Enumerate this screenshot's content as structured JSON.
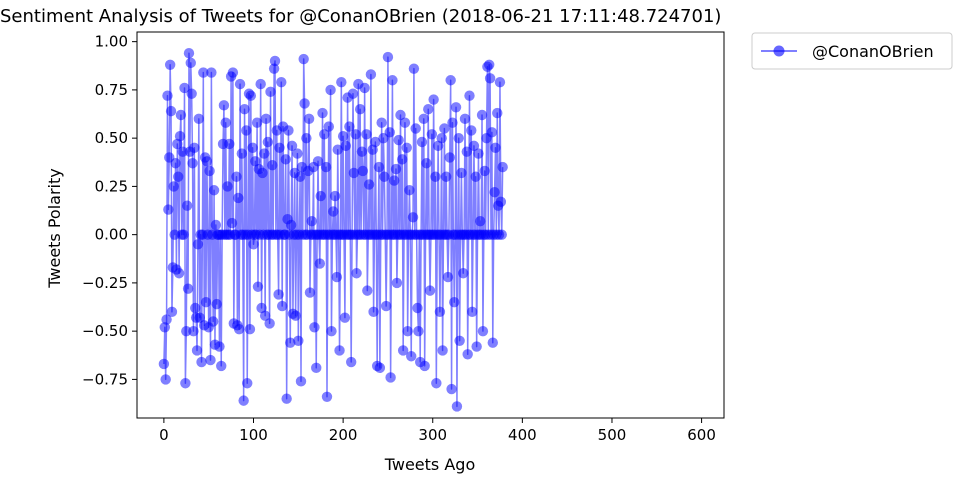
{
  "chart_data": {
    "type": "line",
    "title": "Sentiment Analysis of Tweets for  @ConanOBrien (2018-06-21 17:11:48.724701)",
    "xlabel": "Tweets Ago",
    "ylabel": "Tweets Polarity",
    "xlim": [
      -30,
      625
    ],
    "ylim": [
      -0.95,
      1.05
    ],
    "x_ticks": [
      0,
      100,
      200,
      300,
      400,
      500,
      600
    ],
    "x_tick_labels": [
      "0",
      "100",
      "200",
      "300",
      "400",
      "500",
      "600"
    ],
    "y_ticks": [
      1.0,
      0.75,
      0.5,
      0.25,
      0.0,
      -0.25,
      -0.5,
      -0.75
    ],
    "y_tick_labels": [
      "1.00",
      "0.75",
      "0.50",
      "0.25",
      "0.00",
      "−0.25",
      "−0.50",
      "−0.75"
    ],
    "grid": false,
    "legend_position": "outside-top-right",
    "series": [
      {
        "name": "@ConanOBrien",
        "color": "#0000ff",
        "marker": "circle",
        "alpha": 0.5,
        "y": [
          -0.67,
          -0.48,
          -0.75,
          -0.44,
          0.72,
          0.13,
          0.4,
          0.88,
          0.64,
          -0.4,
          -0.17,
          0.25,
          0.0,
          0.37,
          -0.18,
          0.47,
          0.3,
          -0.2,
          0.51,
          0.62,
          0.0,
          0.43,
          0.0,
          0.76,
          -0.77,
          -0.5,
          0.15,
          -0.28,
          0.94,
          0.43,
          0.89,
          0.73,
          0.37,
          -0.5,
          0.45,
          -0.38,
          -0.43,
          -0.6,
          -0.05,
          0.6,
          -0.43,
          0.0,
          -0.66,
          0.0,
          0.84,
          -0.47,
          0.4,
          -0.35,
          0.38,
          0.0,
          -0.48,
          0.33,
          -0.65,
          0.84,
          0.0,
          -0.45,
          0.23,
          -0.57,
          0.05,
          -0.36,
          0.0,
          0.0,
          -0.58,
          0.0,
          -0.68,
          0.0,
          0.47,
          0.67,
          0.0,
          0.58,
          0.0,
          0.25,
          0.0,
          0.47,
          0.0,
          0.82,
          0.06,
          0.84,
          -0.46,
          0.0,
          0.0,
          0.3,
          -0.47,
          0.19,
          -0.49,
          0.78,
          0.0,
          0.42,
          0.0,
          -0.86,
          0.65,
          0.0,
          0.54,
          -0.77,
          0.0,
          0.73,
          -0.49,
          0.72,
          0.0,
          0.45,
          -0.05,
          0.0,
          0.38,
          0.0,
          0.58,
          -0.27,
          0.34,
          0.0,
          0.78,
          -0.38,
          0.32,
          0.0,
          0.42,
          -0.42,
          0.6,
          0.0,
          0.48,
          0.0,
          -0.46,
          0.74,
          0.0,
          0.36,
          0.0,
          0.86,
          0.9,
          0.0,
          0.54,
          0.0,
          -0.31,
          0.45,
          0.0,
          0.79,
          -0.37,
          0.56,
          0.0,
          0.0,
          0.39,
          -0.85,
          0.08,
          0.54,
          0.0,
          -0.56,
          0.05,
          0.46,
          -0.41,
          0.0,
          0.32,
          -0.42,
          0.0,
          0.42,
          -0.55,
          0.0,
          0.3,
          -0.76,
          0.35,
          0.0,
          0.91,
          0.68,
          0.0,
          0.5,
          0.0,
          0.33,
          0.6,
          -0.3,
          0.0,
          0.07,
          0.0,
          0.35,
          -0.48,
          0.0,
          -0.69,
          0.0,
          0.38,
          0.0,
          -0.15,
          0.2,
          0.0,
          0.63,
          0.0,
          0.52,
          0.0,
          0.35,
          -0.84,
          0.0,
          0.56,
          0.0,
          0.75,
          -0.5,
          0.0,
          0.12,
          0.0,
          0.2,
          0.0,
          -0.22,
          0.44,
          0.0,
          -0.6,
          0.0,
          0.79,
          0.0,
          0.51,
          0.0,
          -0.43,
          0.46,
          0.0,
          0.71,
          0.0,
          0.56,
          0.0,
          -0.66,
          0.0,
          0.73,
          0.32,
          0.0,
          0.52,
          -0.2,
          0.0,
          0.78,
          0.0,
          0.65,
          0.0,
          0.43,
          0.33,
          0.0,
          0.76,
          0.0,
          0.52,
          -0.29,
          0.0,
          0.26,
          0.0,
          0.83,
          0.0,
          0.44,
          -0.4,
          0.0,
          0.48,
          0.0,
          -0.68,
          0.0,
          0.35,
          -0.69,
          0.0,
          0.58,
          0.0,
          0.5,
          0.3,
          0.0,
          -0.37,
          0.0,
          0.92,
          0.0,
          0.53,
          -0.74,
          0.0,
          0.8,
          0.0,
          0.28,
          0.0,
          0.34,
          -0.25,
          0.0,
          0.49,
          0.0,
          0.62,
          0.0,
          0.39,
          -0.6,
          0.0,
          0.58,
          0.0,
          0.45,
          -0.5,
          0.0,
          0.23,
          0.0,
          -0.63,
          0.0,
          0.09,
          0.86,
          0.0,
          0.55,
          0.0,
          -0.38,
          -0.5,
          0.0,
          -0.66,
          0.0,
          0.48,
          0.0,
          0.6,
          -0.68,
          0.0,
          0.37,
          0.0,
          0.65,
          0.0,
          -0.29,
          0.0,
          0.52,
          0.0,
          0.7,
          0.0,
          0.3,
          -0.77,
          0.0,
          0.46,
          0.0,
          -0.4,
          0.0,
          0.5,
          -0.6,
          0.0,
          0.55,
          0.0,
          0.3,
          0.0,
          -0.22,
          0.0,
          0.4,
          0.8,
          -0.8,
          0.58,
          0.0,
          -0.35,
          0.0,
          0.66,
          -0.89,
          0.0,
          0.5,
          -0.55,
          0.0,
          0.32,
          0.0,
          -0.2,
          0.0,
          0.6,
          0.0,
          0.43,
          -0.62,
          0.0,
          0.72,
          0.0,
          0.54,
          -0.4,
          0.0,
          0.46,
          0.0,
          0.3,
          -0.58,
          0.0,
          0.42,
          0.0,
          0.07,
          0.0,
          0.62,
          -0.5,
          0.0,
          0.33,
          0.0,
          0.5,
          0.87,
          0.0,
          0.88,
          0.81,
          0.0,
          0.53,
          -0.56,
          0.0,
          0.22,
          0.45,
          0.0,
          0.63,
          0.15,
          0.0,
          0.79,
          0.17,
          0.0,
          0.35
        ]
      }
    ]
  }
}
